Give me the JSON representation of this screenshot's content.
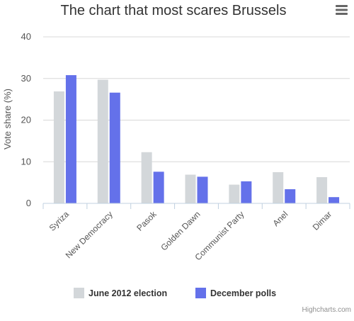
{
  "chart_data": {
    "type": "bar",
    "title": "The chart that most scares Brussels",
    "ylabel": "Vote share (%)",
    "xlabel": "",
    "ylim": [
      0,
      40
    ],
    "yticks": [
      0,
      10,
      20,
      30,
      40
    ],
    "grid": true,
    "legend_position": "bottom",
    "categories": [
      "Syriza",
      "New Democracy",
      "Pasok",
      "Golden Dawn",
      "Communist Party",
      "Anel",
      "Dimar"
    ],
    "series": [
      {
        "name": "June 2012 election",
        "color": "#d3d7da",
        "values": [
          26.9,
          29.7,
          12.3,
          6.9,
          4.5,
          7.5,
          6.3
        ]
      },
      {
        "name": "December polls",
        "color": "#6471ea",
        "values": [
          30.8,
          26.6,
          7.6,
          6.4,
          5.3,
          3.4,
          1.5
        ]
      }
    ]
  },
  "menu": {
    "icon": "hamburger-menu-icon"
  },
  "credits": "Highcharts.com",
  "colors": {
    "axis": "#c0d0e0",
    "grid": "#d8d8d8",
    "text": "#333333",
    "label": "#555555"
  }
}
